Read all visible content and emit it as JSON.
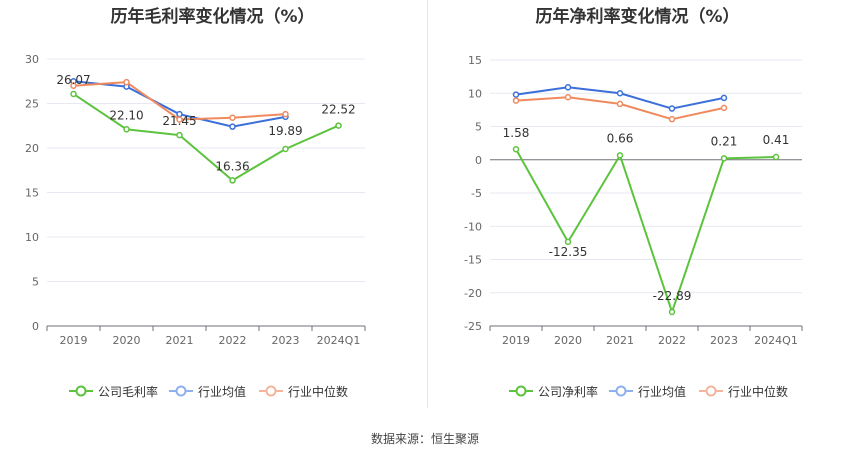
{
  "footer": {
    "source": "数据来源：恒生聚源"
  },
  "chart_data": [
    {
      "type": "line",
      "title": "历年毛利率变化情况（%）",
      "categories": [
        "2019",
        "2020",
        "2021",
        "2022",
        "2023",
        "2024Q1"
      ],
      "ylim": [
        0,
        30
      ],
      "yticks": [
        0,
        5,
        10,
        15,
        20,
        25,
        30
      ],
      "grid": true,
      "legend_position": "bottom",
      "series": [
        {
          "name": "公司毛利率",
          "color": "#5cc33d",
          "values": [
            26.07,
            22.1,
            21.45,
            16.36,
            19.89,
            22.52
          ],
          "labeled": true
        },
        {
          "name": "行业均值",
          "color": "#3b6fd9",
          "values": [
            27.5,
            26.9,
            23.8,
            22.4,
            23.5,
            null
          ],
          "labeled": false
        },
        {
          "name": "行业中位数",
          "color": "#f08a5d",
          "values": [
            27.0,
            27.4,
            23.2,
            23.4,
            23.8,
            null
          ],
          "labeled": false
        }
      ]
    },
    {
      "type": "line",
      "title": "历年净利率变化情况（%）",
      "categories": [
        "2019",
        "2020",
        "2021",
        "2022",
        "2023",
        "2024Q1"
      ],
      "ylim": [
        -25,
        15
      ],
      "yticks": [
        -25,
        -20,
        -15,
        -10,
        -5,
        0,
        5,
        10,
        15
      ],
      "grid": true,
      "legend_position": "bottom",
      "series": [
        {
          "name": "公司净利率",
          "color": "#5cc33d",
          "values": [
            1.58,
            -12.35,
            0.66,
            -22.89,
            0.21,
            0.41
          ],
          "labeled": true
        },
        {
          "name": "行业均值",
          "color": "#3b6fd9",
          "values": [
            9.8,
            10.9,
            10.0,
            7.7,
            9.3,
            null
          ],
          "labeled": false
        },
        {
          "name": "行业中位数",
          "color": "#f08a5d",
          "values": [
            8.9,
            9.4,
            8.4,
            6.1,
            7.8,
            null
          ],
          "labeled": false
        }
      ]
    }
  ]
}
